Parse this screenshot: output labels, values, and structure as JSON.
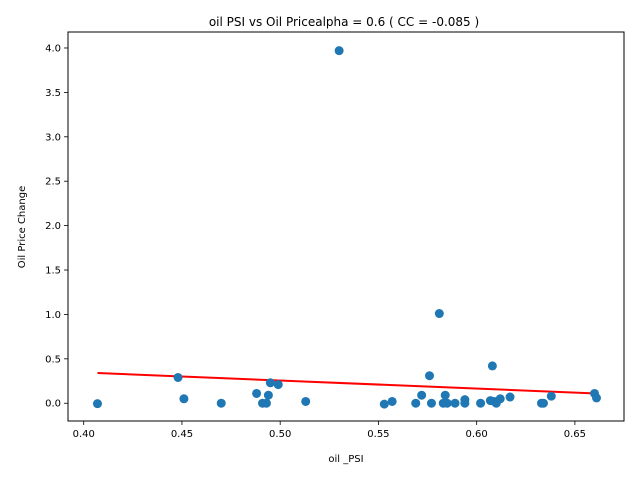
{
  "chart_data": {
    "type": "scatter",
    "title": "oil  PSI vs Oil Pricealpha = 0.6 ( CC = -0.085 )",
    "xlabel": "oil _PSI",
    "ylabel": "Oil Price Change",
    "xlim": [
      0.392,
      0.675
    ],
    "ylim": [
      -0.2,
      4.18
    ],
    "xticks": [
      0.4,
      0.45,
      0.5,
      0.55,
      0.6,
      0.65
    ],
    "xtick_labels": [
      "0.40",
      "0.45",
      "0.50",
      "0.55",
      "0.60",
      "0.65"
    ],
    "yticks": [
      0.0,
      0.5,
      1.0,
      1.5,
      2.0,
      2.5,
      3.0,
      3.5,
      4.0
    ],
    "ytick_labels": [
      "0.0",
      "0.5",
      "1.0",
      "1.5",
      "2.0",
      "2.5",
      "3.0",
      "3.5",
      "4.0"
    ],
    "grid": false,
    "series": [
      {
        "kind": "scatter",
        "color": "#1f77b4",
        "points": [
          [
            0.407,
            -0.005
          ],
          [
            0.448,
            0.29
          ],
          [
            0.451,
            0.05
          ],
          [
            0.47,
            0.0
          ],
          [
            0.488,
            0.11
          ],
          [
            0.491,
            0.0
          ],
          [
            0.493,
            0.0
          ],
          [
            0.494,
            0.09
          ],
          [
            0.495,
            0.23
          ],
          [
            0.499,
            0.21
          ],
          [
            0.513,
            0.02
          ],
          [
            0.53,
            3.97
          ],
          [
            0.553,
            -0.01
          ],
          [
            0.557,
            0.02
          ],
          [
            0.569,
            0.0
          ],
          [
            0.572,
            0.09
          ],
          [
            0.576,
            0.31
          ],
          [
            0.577,
            0.0
          ],
          [
            0.581,
            1.01
          ],
          [
            0.583,
            0.0
          ],
          [
            0.584,
            0.09
          ],
          [
            0.585,
            0.0
          ],
          [
            0.589,
            0.0
          ],
          [
            0.594,
            0.0
          ],
          [
            0.594,
            0.04
          ],
          [
            0.602,
            0.0
          ],
          [
            0.607,
            0.03
          ],
          [
            0.608,
            0.42
          ],
          [
            0.609,
            0.02
          ],
          [
            0.61,
            0.0
          ],
          [
            0.612,
            0.05
          ],
          [
            0.617,
            0.07
          ],
          [
            0.633,
            0.0
          ],
          [
            0.634,
            0.0
          ],
          [
            0.638,
            0.08
          ],
          [
            0.66,
            0.11
          ],
          [
            0.661,
            0.06
          ]
        ]
      },
      {
        "kind": "fit-line",
        "color": "#ff0000",
        "x": [
          0.407,
          0.661
        ],
        "y": [
          0.34,
          0.11
        ]
      }
    ]
  }
}
